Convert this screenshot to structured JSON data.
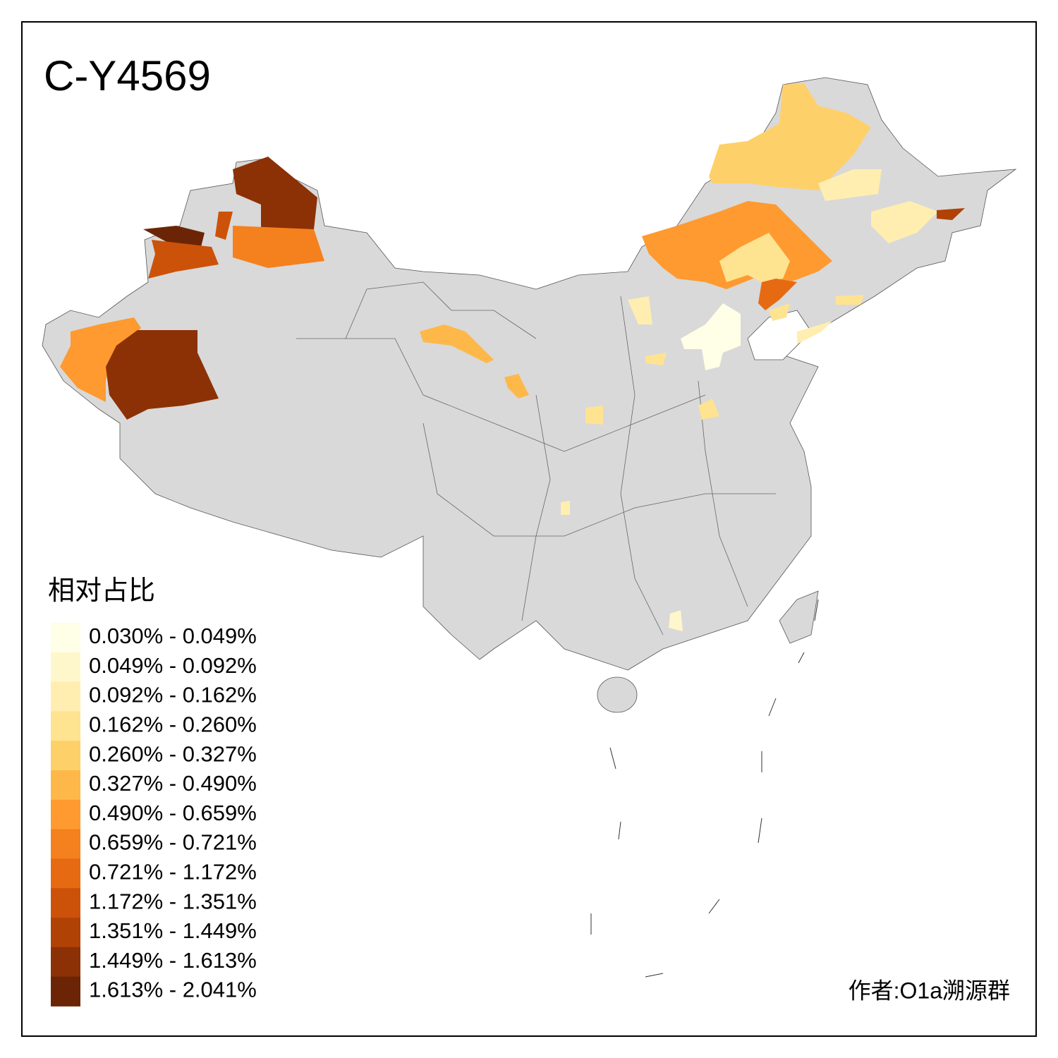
{
  "map": {
    "title": "C-Y4569",
    "legend_title": "相对占比",
    "legend": [
      {
        "label": "0.030% - 0.049%",
        "color": "#fffee6"
      },
      {
        "label": "0.049% - 0.092%",
        "color": "#fff7cc"
      },
      {
        "label": "0.092% - 0.162%",
        "color": "#ffeeb0"
      },
      {
        "label": "0.162% - 0.260%",
        "color": "#fee391"
      },
      {
        "label": "0.260% - 0.327%",
        "color": "#fed06a"
      },
      {
        "label": "0.327% - 0.490%",
        "color": "#feb849"
      },
      {
        "label": "0.490% - 0.659%",
        "color": "#fe9a30"
      },
      {
        "label": "0.659% - 0.721%",
        "color": "#f5801e"
      },
      {
        "label": "0.721% - 1.172%",
        "color": "#e66a12"
      },
      {
        "label": "1.172% - 1.351%",
        "color": "#cc520a"
      },
      {
        "label": "1.351% - 1.449%",
        "color": "#b04205"
      },
      {
        "label": "1.449% - 1.613%",
        "color": "#8c3105"
      },
      {
        "label": "1.613% - 2.041%",
        "color": "#6b2506"
      }
    ],
    "author": "作者:O1a溯源群"
  }
}
